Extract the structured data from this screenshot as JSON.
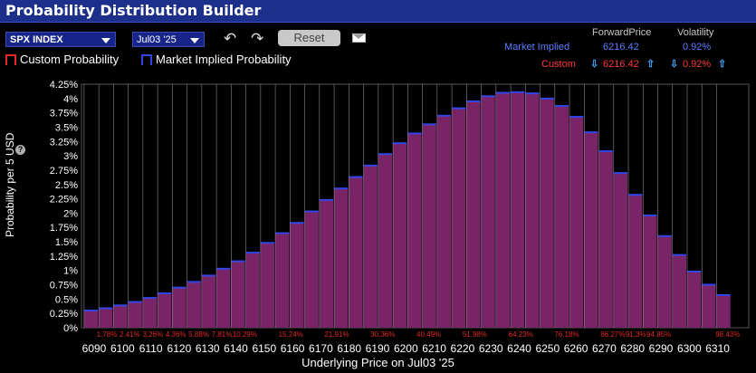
{
  "app": {
    "title": "Probability Distribution Builder"
  },
  "toolbar": {
    "symbol": "SPX INDEX",
    "expiry": "Jul03 '25",
    "reset_label": "Reset"
  },
  "legend": {
    "custom": "Custom Probability",
    "market": "Market Implied Probability"
  },
  "summary": {
    "forward_header": "ForwardPrice",
    "vol_header": "Volatility",
    "market_label": "Market Implied",
    "market_forward": "6216.42",
    "market_vol": "0.92%",
    "custom_label": "Custom",
    "custom_forward": "6216.42",
    "custom_vol": "0.92%"
  },
  "colors": {
    "bar_fill": "#7a2468",
    "bar_top": "#3246e8",
    "title_bg": "#1c2f8a",
    "percent_text": "#e02828"
  },
  "chart_data": {
    "type": "bar",
    "xlabel": "Underlying Price on Jul03 '25",
    "ylabel": "Probability per 5 USD",
    "ylim": [
      0,
      4.25
    ],
    "yticks": [
      "0%",
      "0.25%",
      "0.5%",
      "0.75%",
      "1%",
      "1.25%",
      "1.5%",
      "1.75%",
      "2%",
      "2.25%",
      "2.5%",
      "2.75%",
      "3%",
      "3.25%",
      "3.5%",
      "3.75%",
      "4%",
      "4.25%"
    ],
    "xticks": [
      "6090",
      "6100",
      "6110",
      "6120",
      "6130",
      "6140",
      "6150",
      "6160",
      "6170",
      "6180",
      "6190",
      "6200",
      "6210",
      "6220",
      "6230",
      "6240",
      "6250",
      "6260",
      "6270",
      "6280",
      "6290",
      "6300",
      "6310"
    ],
    "cumulative_labels": [
      "1.78%",
      "2.41%",
      "3.26%",
      "4.36%",
      "5.88%",
      "7.81%",
      "10.29%",
      "",
      "15.24%",
      "",
      "21.91%",
      "",
      "30.36%",
      "",
      "40.49%",
      "",
      "51.98%",
      "",
      "64.23%",
      "",
      "76.18%",
      "",
      "86.27%",
      "91.3%",
      "94.85%",
      "",
      "",
      "98.43%"
    ],
    "bin_starts": [
      6090,
      6095,
      6100,
      6105,
      6110,
      6115,
      6120,
      6125,
      6130,
      6135,
      6140,
      6145,
      6150,
      6155,
      6160,
      6165,
      6170,
      6175,
      6180,
      6185,
      6190,
      6195,
      6200,
      6205,
      6210,
      6215,
      6220,
      6225,
      6230,
      6235,
      6240,
      6245,
      6250,
      6255,
      6260,
      6265,
      6270,
      6275,
      6280,
      6285,
      6290,
      6295,
      6300,
      6305
    ],
    "values": [
      0.3,
      0.34,
      0.39,
      0.45,
      0.52,
      0.6,
      0.7,
      0.8,
      0.91,
      1.03,
      1.16,
      1.31,
      1.48,
      1.65,
      1.83,
      2.03,
      2.23,
      2.43,
      2.63,
      2.83,
      3.03,
      3.22,
      3.39,
      3.55,
      3.7,
      3.83,
      3.95,
      4.04,
      4.1,
      4.11,
      4.09,
      4.0,
      3.87,
      3.68,
      3.41,
      3.08,
      2.7,
      2.32,
      1.96,
      1.6,
      1.27,
      0.98,
      0.75,
      0.57
    ]
  }
}
